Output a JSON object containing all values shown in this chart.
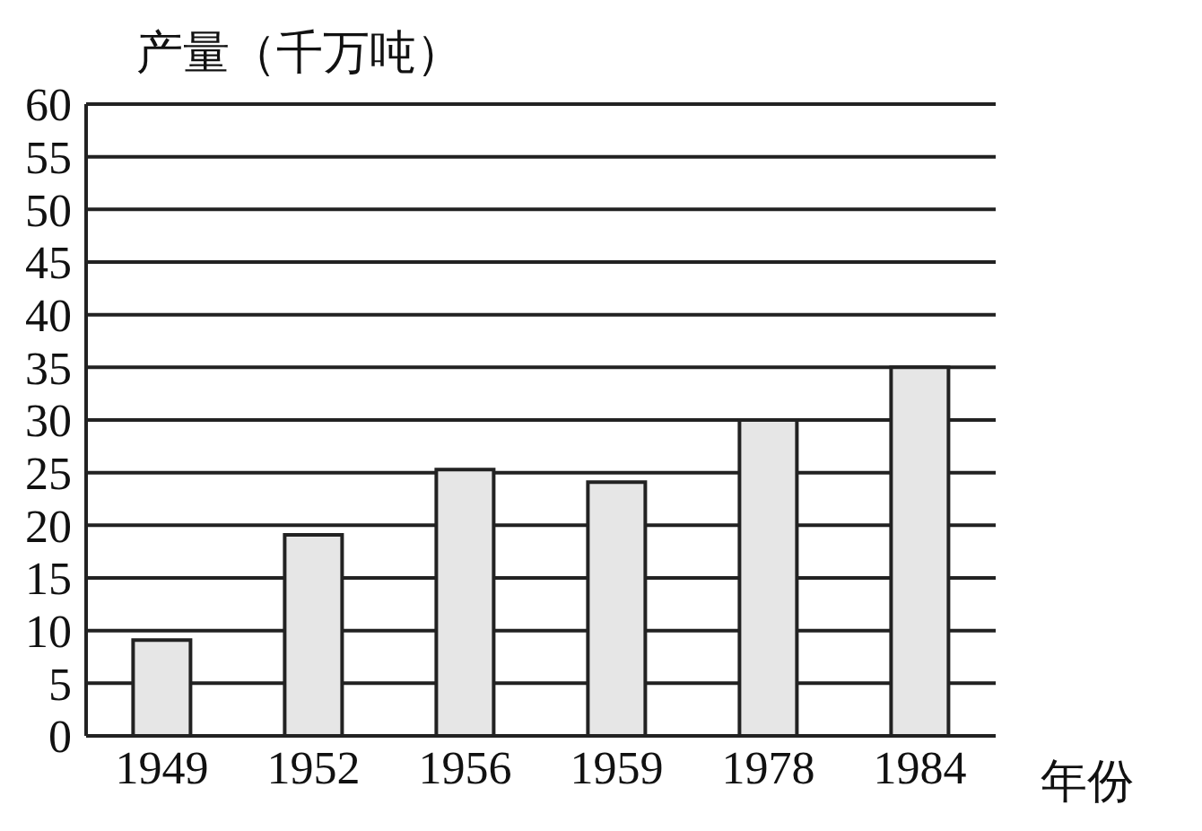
{
  "chart_data": {
    "type": "bar",
    "ylabel": "产量（千万吨）",
    "xlabel": "年份",
    "categories": [
      "1949",
      "1952",
      "1956",
      "1959",
      "1978",
      "1984"
    ],
    "values": [
      9.1,
      19.1,
      25.3,
      24.1,
      30,
      35
    ],
    "color": "#e6e6e6",
    "ylim": [
      0,
      60
    ],
    "yticks": [
      0,
      5,
      10,
      15,
      20,
      25,
      30,
      35,
      40,
      45,
      50,
      55,
      60
    ],
    "grid": "y"
  }
}
